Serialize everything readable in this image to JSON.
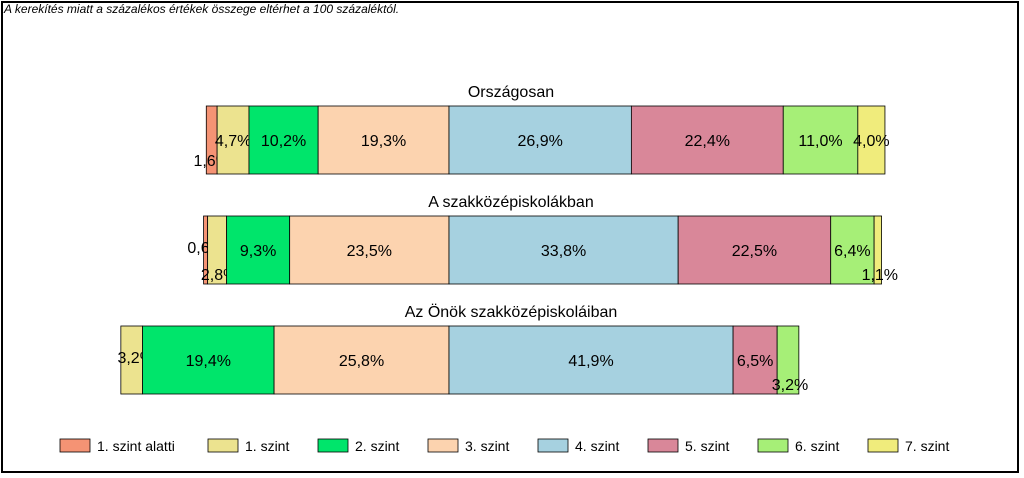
{
  "note": "A kerekítés miatt a százalékos értékek összege eltérhet a 100 százaléktól.",
  "chart_data": {
    "type": "bar",
    "orientation": "horizontal",
    "stacked": true,
    "label_suffix": "%",
    "decimal_separator": ",",
    "categories": [
      "Országosan",
      "A szakközépiskolákban",
      "Az Önök szakközépiskoláiban"
    ],
    "series": [
      {
        "name": "1. szint alatti",
        "color": "#f59374",
        "values": [
          1.6,
          0.6,
          0
        ]
      },
      {
        "name": "1. szint",
        "color": "#ece38f",
        "values": [
          4.7,
          2.8,
          3.2
        ]
      },
      {
        "name": "2. szint",
        "color": "#00e56b",
        "values": [
          10.2,
          9.3,
          19.4
        ]
      },
      {
        "name": "3. szint",
        "color": "#fcd3af",
        "values": [
          19.3,
          23.5,
          25.8
        ]
      },
      {
        "name": "4. szint",
        "color": "#a6d1e0",
        "values": [
          26.9,
          33.8,
          41.9
        ]
      },
      {
        "name": "5. szint",
        "color": "#d98799",
        "values": [
          22.4,
          22.5,
          6.5
        ]
      },
      {
        "name": "6. szint",
        "color": "#a6ef77",
        "values": [
          11.0,
          6.4,
          3.2
        ]
      },
      {
        "name": "7. szint",
        "color": "#f0ec7c",
        "values": [
          4.0,
          1.1,
          0
        ]
      }
    ],
    "grid": false,
    "legend_position": "bottom"
  }
}
